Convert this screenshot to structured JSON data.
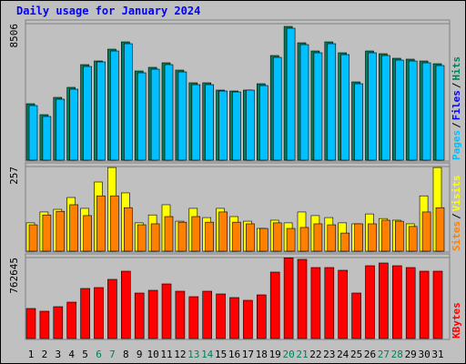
{
  "title": "Daily usage for January 2024",
  "chart_data": [
    {
      "type": "bar",
      "ylim": [
        0,
        8506
      ],
      "yticks": [
        8506
      ],
      "axis_label_parts": [
        {
          "text": "Pages",
          "color": "#00c0ff"
        },
        {
          "text": "/",
          "color": "#000000"
        },
        {
          "text": "Files",
          "color": "#0000ff"
        },
        {
          "text": "/",
          "color": "#000000"
        },
        {
          "text": "Hits",
          "color": "#00805c"
        }
      ],
      "series": [
        {
          "name": "Hits",
          "color": "#00805c",
          "values": [
            3516,
            2835,
            3912,
            4536,
            5954,
            6180,
            6917,
            7371,
            5557,
            5784,
            6067,
            5613,
            4820,
            4820,
            4366,
            4309,
            4366,
            4763,
            6521,
            8335,
            7314,
            6804,
            7371,
            6691,
            4876,
            6804,
            6634,
            6350,
            6294,
            6180,
            6010
          ]
        },
        {
          "name": "Files",
          "color": "#00c0ff",
          "values": [
            3403,
            2722,
            3799,
            4423,
            5840,
            6124,
            6804,
            7258,
            5443,
            5670,
            5954,
            5500,
            4706,
            4706,
            4309,
            4253,
            4366,
            4650,
            6407,
            8222,
            7201,
            6691,
            7258,
            6577,
            4763,
            6691,
            6521,
            6237,
            6180,
            6067,
            5897
          ]
        }
      ]
    },
    {
      "type": "bar",
      "ylim": [
        0,
        257
      ],
      "yticks": [
        257
      ],
      "axis_label_parts": [
        {
          "text": "Sites",
          "color": "#ff8000"
        },
        {
          "text": "/",
          "color": "#000000"
        },
        {
          "text": "Visits",
          "color": "#ffff00"
        }
      ],
      "series": [
        {
          "name": "Visits",
          "color": "#ffff00",
          "values": [
            86,
            119,
            127,
            163,
            130,
            210,
            254,
            177,
            86,
            110,
            141,
            91,
            130,
            102,
            130,
            105,
            91,
            69,
            94,
            86,
            119,
            108,
            102,
            86,
            83,
            113,
            99,
            94,
            83,
            168,
            254
          ]
        },
        {
          "name": "Sites",
          "color": "#ff8000",
          "values": [
            80,
            110,
            121,
            141,
            108,
            168,
            168,
            132,
            80,
            83,
            105,
            88,
            105,
            88,
            119,
            88,
            83,
            69,
            86,
            69,
            72,
            83,
            80,
            55,
            83,
            83,
            94,
            91,
            75,
            119,
            132
          ]
        }
      ]
    },
    {
      "type": "bar",
      "ylim": [
        0,
        762645
      ],
      "yticks": [
        762645
      ],
      "axis_label_parts": [
        {
          "text": "KBytes",
          "color": "#ff0000"
        }
      ],
      "categories": [
        "1",
        "2",
        "3",
        "4",
        "5",
        "6",
        "7",
        "8",
        "9",
        "10",
        "11",
        "12",
        "13",
        "14",
        "15",
        "16",
        "17",
        "18",
        "19",
        "20",
        "21",
        "22",
        "23",
        "24",
        "25",
        "26",
        "27",
        "28",
        "29",
        "30",
        "31"
      ],
      "category_colors": [
        "#000000",
        "#000000",
        "#000000",
        "#000000",
        "#000000",
        "#00805c",
        "#00805c",
        "#000000",
        "#000000",
        "#000000",
        "#000000",
        "#000000",
        "#00805c",
        "#00805c",
        "#000000",
        "#000000",
        "#000000",
        "#000000",
        "#000000",
        "#00805c",
        "#00805c",
        "#000000",
        "#000000",
        "#000000",
        "#000000",
        "#000000",
        "#00805c",
        "#00805c",
        "#000000",
        "#000000",
        "#000000"
      ],
      "series": [
        {
          "name": "KBytes",
          "color": "#ff0000",
          "values": [
            282780,
            257070,
            299920,
            342760,
            471300,
            479860,
            556990,
            634110,
            428450,
            454160,
            514140,
            445590,
            394170,
            445590,
            419880,
            385610,
            359900,
            411310,
            625540,
            760000,
            745500,
            668380,
            668380,
            642680,
            428450,
            685520,
            711230,
            685520,
            668380,
            634110,
            634110
          ]
        }
      ]
    }
  ]
}
